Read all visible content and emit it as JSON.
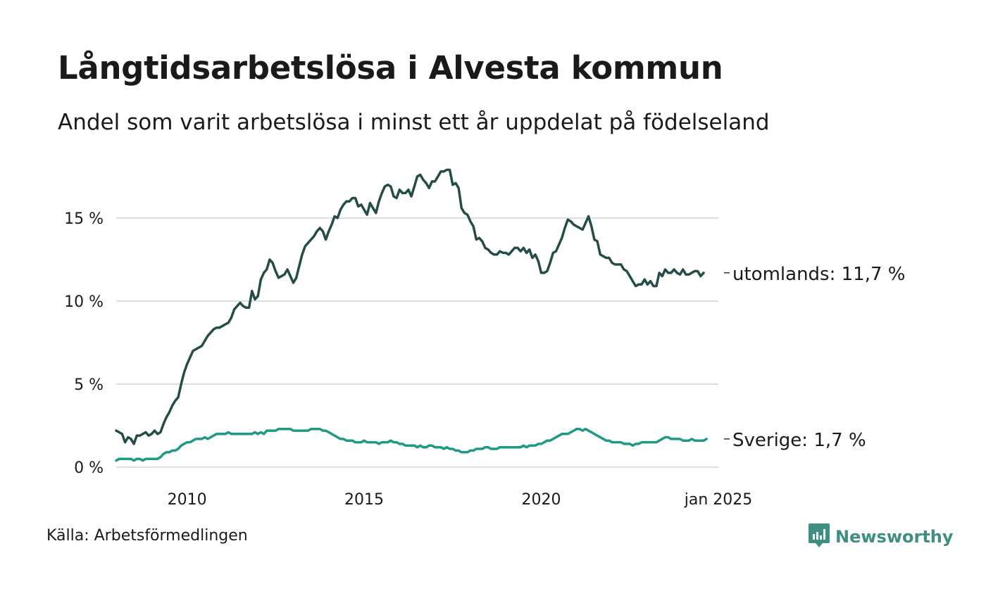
{
  "title": "Långtidsarbetslösa i Alvesta kommun",
  "subtitle": "Andel som varit arbetslösa i minst ett år uppdelat på födelseland",
  "source": "Källa: Arbetsförmedlingen",
  "brand": {
    "name": "Newsworthy",
    "icon": "newsworthy-logo-icon",
    "color": "#3e8f82"
  },
  "chart_data": {
    "type": "line",
    "x_start": 2008.0,
    "x_step": 0.08333,
    "xlim": [
      2008.0,
      2025.0
    ],
    "ylim": [
      0,
      18
    ],
    "y_ticks": [
      0,
      5,
      10,
      15
    ],
    "y_tick_labels": [
      "0 %",
      "5 %",
      "10 %",
      "15 %"
    ],
    "x_ticks": [
      2010,
      2015,
      2020,
      2025
    ],
    "x_tick_labels": [
      "2010",
      "2015",
      "2020",
      "jan 2025"
    ],
    "grid": true,
    "series": [
      {
        "name": "utomlands",
        "end_label": "utomlands: 11,7 %",
        "color": "#254d47",
        "values": [
          2.2,
          2.1,
          2.0,
          1.5,
          1.8,
          1.7,
          1.4,
          1.9,
          1.9,
          2.0,
          2.1,
          1.9,
          2.0,
          2.2,
          2.0,
          2.1,
          2.6,
          3.0,
          3.3,
          3.7,
          4.0,
          4.2,
          5.0,
          5.7,
          6.2,
          6.6,
          7.0,
          7.1,
          7.2,
          7.3,
          7.6,
          7.9,
          8.1,
          8.3,
          8.4,
          8.4,
          8.5,
          8.6,
          8.7,
          9.0,
          9.5,
          9.7,
          9.9,
          9.7,
          9.6,
          9.6,
          10.6,
          10.1,
          10.3,
          11.3,
          11.7,
          11.9,
          12.5,
          12.3,
          11.8,
          11.4,
          11.5,
          11.6,
          11.9,
          11.5,
          11.1,
          11.4,
          12.1,
          12.8,
          13.3,
          13.5,
          13.7,
          13.9,
          14.2,
          14.4,
          14.2,
          13.7,
          14.2,
          14.6,
          15.1,
          15.0,
          15.5,
          15.8,
          16.0,
          16.0,
          16.2,
          16.2,
          15.7,
          15.8,
          15.5,
          15.2,
          15.9,
          15.6,
          15.3,
          16.0,
          16.5,
          16.9,
          17.0,
          16.9,
          16.3,
          16.2,
          16.7,
          16.5,
          16.5,
          16.7,
          16.3,
          16.9,
          17.5,
          17.6,
          17.3,
          17.1,
          16.8,
          17.2,
          17.2,
          17.5,
          17.8,
          17.8,
          17.9,
          17.9,
          17.0,
          17.1,
          16.8,
          15.6,
          15.3,
          15.2,
          14.8,
          14.5,
          13.7,
          13.8,
          13.6,
          13.2,
          13.1,
          12.9,
          12.8,
          12.8,
          13.0,
          12.9,
          12.9,
          12.8,
          13.0,
          13.2,
          13.2,
          13.0,
          13.2,
          12.9,
          13.1,
          12.6,
          12.8,
          12.4,
          11.7,
          11.7,
          11.8,
          12.3,
          12.9,
          13.0,
          13.4,
          13.8,
          14.4,
          14.9,
          14.8,
          14.6,
          14.5,
          14.4,
          14.3,
          14.7,
          15.1,
          14.5,
          13.7,
          13.6,
          12.8,
          12.7,
          12.6,
          12.6,
          12.3,
          12.2,
          12.2,
          12.2,
          11.9,
          11.8,
          11.5,
          11.2,
          10.9,
          11.0,
          11.0,
          11.3,
          11.0,
          11.2,
          10.9,
          10.9,
          11.7,
          11.5,
          11.9,
          11.7,
          11.7,
          11.9,
          11.7,
          11.6,
          11.9,
          11.6,
          11.6,
          11.7,
          11.8,
          11.8,
          11.5,
          11.7
        ]
      },
      {
        "name": "Sverige",
        "end_label": "Sverige:  1,7 %",
        "color": "#1e9986",
        "values": [
          0.4,
          0.5,
          0.5,
          0.5,
          0.5,
          0.5,
          0.4,
          0.5,
          0.5,
          0.4,
          0.5,
          0.5,
          0.5,
          0.5,
          0.5,
          0.6,
          0.8,
          0.9,
          0.9,
          1.0,
          1.0,
          1.1,
          1.3,
          1.4,
          1.5,
          1.5,
          1.6,
          1.7,
          1.7,
          1.7,
          1.8,
          1.7,
          1.8,
          1.9,
          2.0,
          2.0,
          2.0,
          2.0,
          2.1,
          2.0,
          2.0,
          2.0,
          2.0,
          2.0,
          2.0,
          2.0,
          2.0,
          2.1,
          2.0,
          2.1,
          2.0,
          2.2,
          2.2,
          2.2,
          2.2,
          2.3,
          2.3,
          2.3,
          2.3,
          2.3,
          2.2,
          2.2,
          2.2,
          2.2,
          2.2,
          2.2,
          2.3,
          2.3,
          2.3,
          2.3,
          2.2,
          2.2,
          2.1,
          2.0,
          1.9,
          1.8,
          1.7,
          1.7,
          1.6,
          1.6,
          1.6,
          1.5,
          1.5,
          1.5,
          1.6,
          1.5,
          1.5,
          1.5,
          1.5,
          1.4,
          1.5,
          1.5,
          1.5,
          1.6,
          1.5,
          1.5,
          1.4,
          1.4,
          1.3,
          1.3,
          1.3,
          1.3,
          1.2,
          1.3,
          1.2,
          1.2,
          1.3,
          1.3,
          1.2,
          1.2,
          1.2,
          1.1,
          1.2,
          1.1,
          1.1,
          1.0,
          1.0,
          0.9,
          0.9,
          0.9,
          1.0,
          1.0,
          1.1,
          1.1,
          1.1,
          1.2,
          1.2,
          1.1,
          1.1,
          1.1,
          1.2,
          1.2,
          1.2,
          1.2,
          1.2,
          1.2,
          1.2,
          1.2,
          1.3,
          1.2,
          1.3,
          1.3,
          1.3,
          1.4,
          1.4,
          1.5,
          1.6,
          1.6,
          1.7,
          1.8,
          1.9,
          2.0,
          2.0,
          2.0,
          2.1,
          2.2,
          2.3,
          2.3,
          2.2,
          2.3,
          2.2,
          2.1,
          2.0,
          1.9,
          1.8,
          1.7,
          1.6,
          1.6,
          1.5,
          1.5,
          1.5,
          1.5,
          1.4,
          1.4,
          1.4,
          1.3,
          1.4,
          1.4,
          1.5,
          1.5,
          1.5,
          1.5,
          1.5,
          1.5,
          1.6,
          1.7,
          1.8,
          1.8,
          1.7,
          1.7,
          1.7,
          1.7,
          1.6,
          1.6,
          1.6,
          1.7,
          1.6,
          1.6,
          1.6,
          1.6,
          1.7
        ]
      }
    ]
  }
}
